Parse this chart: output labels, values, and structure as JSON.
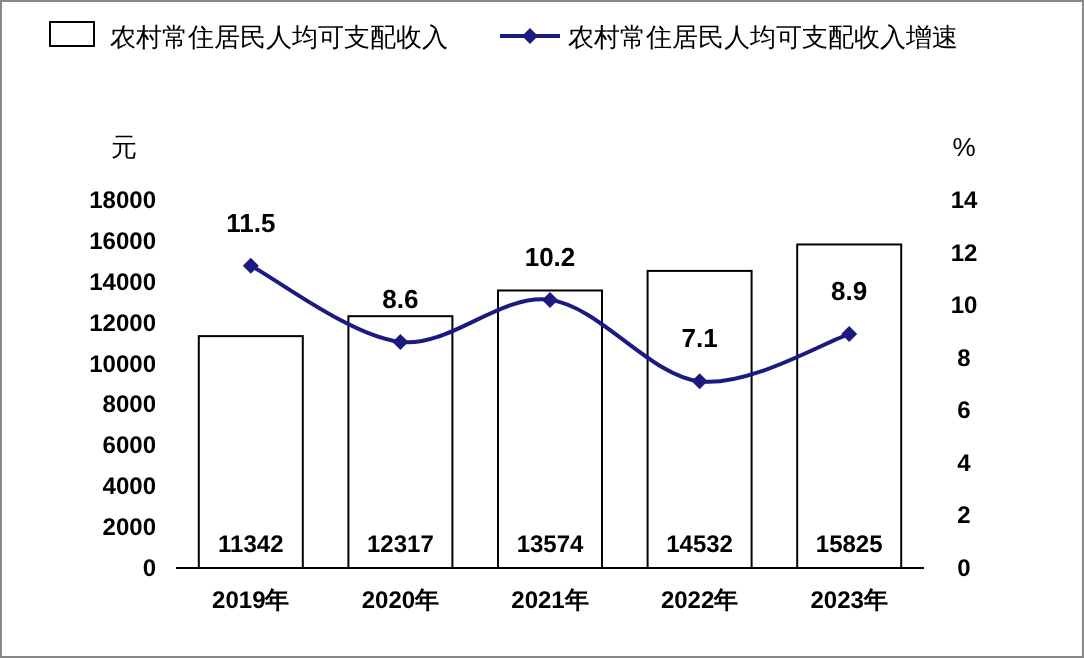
{
  "chart_data": {
    "type": "bar",
    "categories": [
      "2019年",
      "2020年",
      "2021年",
      "2022年",
      "2023年"
    ],
    "series": [
      {
        "name": "农村常住居民人均可支配收入",
        "color": "#ffffff",
        "values": [
          11342,
          12317,
          13574,
          14532,
          15825
        ]
      },
      {
        "name": "农村常住居民人均可支配收入增速",
        "type": "line",
        "axis": "y2",
        "color": "#1a1a80",
        "values": [
          11.5,
          8.6,
          10.2,
          7.1,
          8.9
        ]
      }
    ],
    "ylabel": "元",
    "y2label": "%",
    "ylim": [
      0,
      18000
    ],
    "yticks": [
      0,
      2000,
      4000,
      6000,
      8000,
      10000,
      12000,
      14000,
      16000,
      18000
    ],
    "y2lim": [
      0,
      14
    ],
    "y2ticks": [
      0,
      2,
      4,
      6,
      8,
      10,
      12,
      14
    ],
    "data_labels": true,
    "legend": "top",
    "marker": "diamond"
  }
}
